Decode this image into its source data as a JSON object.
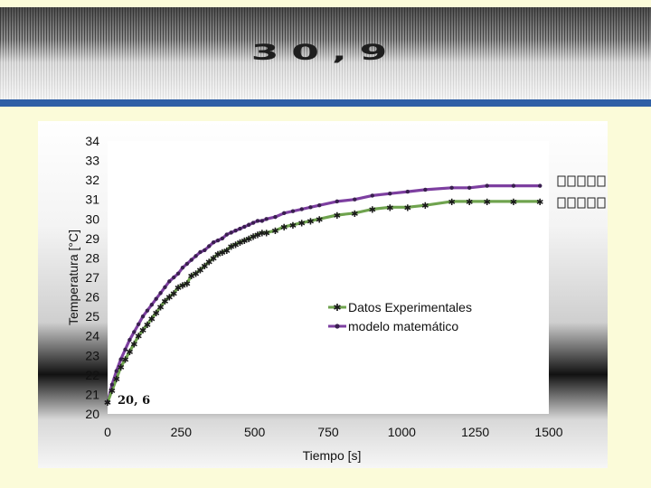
{
  "banner": {
    "value": "30,9"
  },
  "colors": {
    "experimental": "#6fa34e",
    "model": "#7d3fa0",
    "accent": "#2f5fa6"
  },
  "chart_data": {
    "type": "line",
    "xlabel": "Tiempo [s]",
    "ylabel": "Temperatura [°C]",
    "xlim": [
      0,
      1500
    ],
    "ylim": [
      20,
      34
    ],
    "x_ticks": [
      0,
      250,
      500,
      750,
      1000,
      1250,
      1500
    ],
    "y_ticks": [
      20,
      21,
      22,
      23,
      24,
      25,
      26,
      27,
      28,
      29,
      30,
      31,
      32,
      33,
      34
    ],
    "legend_position": "center-right",
    "grid": false,
    "annotations": [
      {
        "text": "20, 6",
        "x": 0,
        "y": 20.6
      }
    ],
    "series": [
      {
        "name": "Datos Experimentales",
        "x": [
          0,
          15,
          30,
          45,
          60,
          75,
          90,
          105,
          120,
          135,
          150,
          165,
          180,
          195,
          210,
          225,
          240,
          255,
          270,
          285,
          300,
          315,
          330,
          345,
          360,
          375,
          390,
          405,
          420,
          435,
          450,
          465,
          480,
          495,
          510,
          525,
          540,
          570,
          600,
          630,
          660,
          690,
          720,
          780,
          840,
          900,
          960,
          1020,
          1080,
          1170,
          1230,
          1290,
          1380,
          1470
        ],
        "values": [
          20.6,
          21.2,
          21.8,
          22.4,
          22.8,
          23.2,
          23.6,
          24.0,
          24.3,
          24.6,
          24.9,
          25.2,
          25.5,
          25.8,
          26.0,
          26.2,
          26.5,
          26.6,
          26.7,
          27.1,
          27.2,
          27.4,
          27.6,
          27.8,
          28.0,
          28.2,
          28.3,
          28.4,
          28.6,
          28.7,
          28.8,
          28.9,
          29.0,
          29.1,
          29.2,
          29.3,
          29.3,
          29.4,
          29.6,
          29.7,
          29.8,
          29.9,
          30.0,
          30.2,
          30.3,
          30.5,
          30.6,
          30.6,
          30.7,
          30.9,
          30.9,
          30.9,
          30.9,
          30.9
        ]
      },
      {
        "name": "modelo matemático",
        "x": [
          0,
          15,
          30,
          45,
          60,
          75,
          90,
          105,
          120,
          135,
          150,
          165,
          180,
          195,
          210,
          225,
          240,
          255,
          270,
          285,
          300,
          315,
          330,
          345,
          360,
          375,
          390,
          405,
          420,
          435,
          450,
          465,
          480,
          495,
          510,
          525,
          540,
          570,
          600,
          630,
          660,
          690,
          720,
          780,
          840,
          900,
          960,
          1020,
          1080,
          1170,
          1230,
          1290,
          1380,
          1470
        ],
        "values": [
          20.6,
          21.5,
          22.2,
          22.8,
          23.3,
          23.8,
          24.2,
          24.6,
          25.0,
          25.3,
          25.6,
          25.9,
          26.2,
          26.5,
          26.8,
          27.0,
          27.2,
          27.5,
          27.7,
          27.9,
          28.1,
          28.3,
          28.4,
          28.6,
          28.8,
          28.9,
          29.0,
          29.2,
          29.3,
          29.4,
          29.5,
          29.6,
          29.7,
          29.8,
          29.9,
          29.9,
          30.0,
          30.1,
          30.3,
          30.4,
          30.5,
          30.6,
          30.7,
          30.9,
          31.0,
          31.2,
          31.3,
          31.4,
          31.5,
          31.6,
          31.6,
          31.7,
          31.7,
          31.7
        ]
      }
    ]
  }
}
